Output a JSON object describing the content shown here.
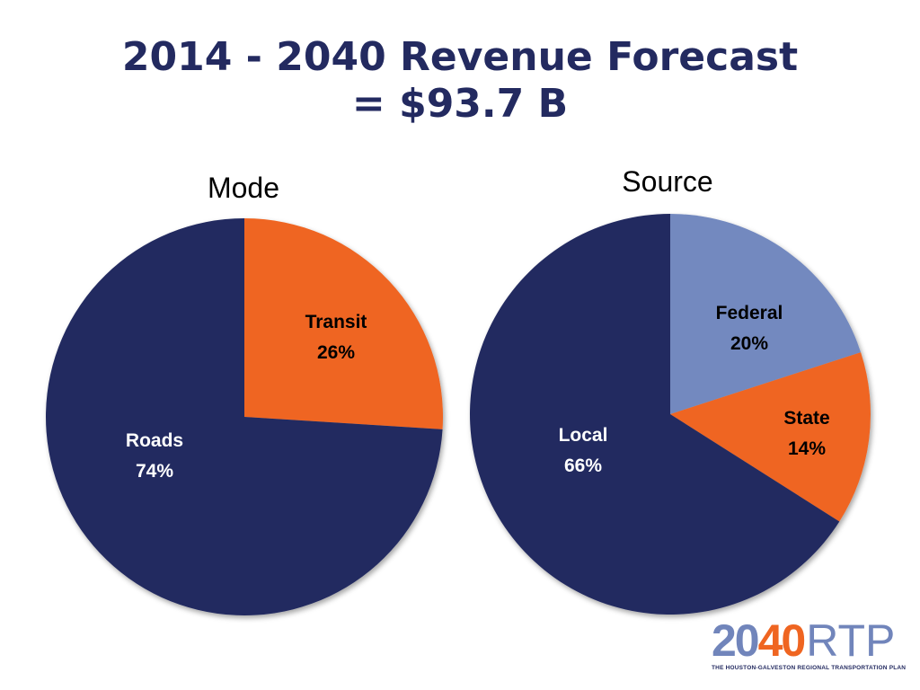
{
  "slide": {
    "title_line1": "2014 - 2040 Revenue Forecast",
    "title_line2": "= $93.7 B"
  },
  "colors": {
    "navy": "#232a60",
    "orange": "#ef6521",
    "periwinkle": "#7389bf"
  },
  "chart_data": [
    {
      "type": "pie",
      "title": "Mode",
      "slices": [
        {
          "label": "Transit",
          "value": 26,
          "value_label": "26%",
          "color": "#ef6521"
        },
        {
          "label": "Roads",
          "value": 74,
          "value_label": "74%",
          "color": "#232a60"
        }
      ]
    },
    {
      "type": "pie",
      "title": "Source",
      "slices": [
        {
          "label": "Federal",
          "value": 20,
          "value_label": "20%",
          "color": "#7389bf"
        },
        {
          "label": "State",
          "value": 14,
          "value_label": "14%",
          "color": "#ef6521"
        },
        {
          "label": "Local",
          "value": 66,
          "value_label": "66%",
          "color": "#232a60"
        }
      ]
    }
  ],
  "logo": {
    "part1": "20",
    "part2": "40",
    "part3": "RTP",
    "tagline": "THE HOUSTON-GALVESTON REGIONAL TRANSPORTATION PLAN"
  }
}
